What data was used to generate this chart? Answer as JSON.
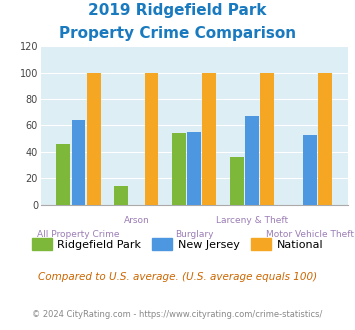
{
  "title_line1": "2019 Ridgefield Park",
  "title_line2": "Property Crime Comparison",
  "title_color": "#1a7abf",
  "categories": [
    "All Property Crime",
    "Arson",
    "Burglary",
    "Larceny & Theft",
    "Motor Vehicle Theft"
  ],
  "ridgefield_park": [
    46,
    14,
    54,
    36,
    0
  ],
  "new_jersey": [
    64,
    0,
    55,
    67,
    53
  ],
  "national": [
    100,
    100,
    100,
    100,
    100
  ],
  "bar_colors": {
    "ridgefield_park": "#7db83a",
    "new_jersey": "#4d96e0",
    "national": "#f5a623"
  },
  "ylim": [
    0,
    120
  ],
  "yticks": [
    0,
    20,
    40,
    60,
    80,
    100,
    120
  ],
  "plot_bg": "#deeef5",
  "xlabel_color": "#9b7db5",
  "footnote1": "Compared to U.S. average. (U.S. average equals 100)",
  "footnote2": "© 2024 CityRating.com - https://www.cityrating.com/crime-statistics/",
  "footnote1_color": "#cc6600",
  "footnote2_color": "#888888",
  "legend_labels": [
    "Ridgefield Park",
    "New Jersey",
    "National"
  ],
  "xlabel_top": [
    "",
    "Arson",
    "",
    "Larceny & Theft",
    ""
  ],
  "xlabel_bot": [
    "All Property Crime",
    "",
    "Burglary",
    "",
    "Motor Vehicle Theft"
  ]
}
